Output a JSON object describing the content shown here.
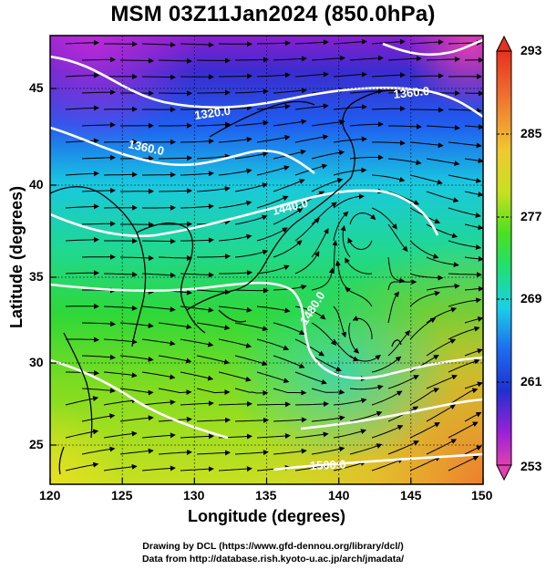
{
  "title": "MSM 03Z11Jan2024 (850.0hPa)",
  "xaxis": {
    "label": "Longitude (degrees)",
    "ticks": [
      "120",
      "125",
      "130",
      "135",
      "140",
      "145",
      "150"
    ],
    "range": [
      120,
      150
    ]
  },
  "yaxis": {
    "label": "Latitude  (degrees)",
    "ticks": [
      "25",
      "30",
      "35",
      "40",
      "45"
    ],
    "range": [
      22.5,
      47.5
    ]
  },
  "colorbar": {
    "ticks": [
      "293",
      "285",
      "277",
      "269",
      "261",
      "253"
    ],
    "range": [
      253,
      293
    ],
    "colors": [
      "#e040b0",
      "#9b20d8",
      "#2030d0",
      "#1d6cf0",
      "#19d0e8",
      "#20e070",
      "#4ae020",
      "#c8e020",
      "#f0c830",
      "#f07830",
      "#e83020"
    ]
  },
  "contour_labels": [
    "1320.0",
    "1360.0",
    "1360.0",
    "1440.0",
    "1480.0",
    "1500.0"
  ],
  "credits": {
    "line1": "Drawing by DCL (https://www.gfd-dennou.org/library/dcl/)",
    "line2": "Data from http://database.rish.kyoto-u.ac.jp/arch/jmadata/"
  }
}
